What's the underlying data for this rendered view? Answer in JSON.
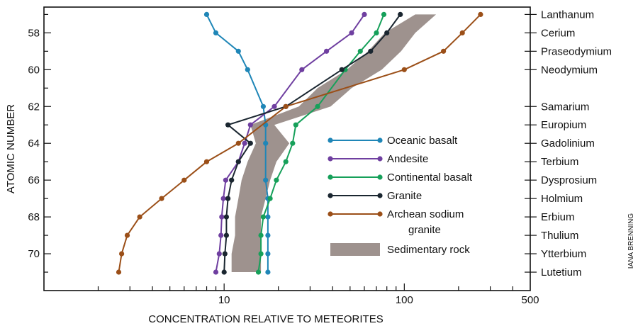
{
  "chart_data": {
    "type": "line",
    "xlabel": "CONCENTRATION RELATIVE TO METEORITES",
    "ylabel": "ATOMIC NUMBER",
    "x_scale": "log",
    "xlim": [
      1,
      500
    ],
    "ylim": [
      56.6,
      72
    ],
    "y_inverted": true,
    "x_ticks": [
      10,
      100,
      500
    ],
    "y_ticks": [
      58,
      60,
      62,
      64,
      66,
      68,
      70
    ],
    "elements": [
      {
        "z": 57,
        "name": "Lanthanum"
      },
      {
        "z": 58,
        "name": "Cerium"
      },
      {
        "z": 59,
        "name": "Praseodymium"
      },
      {
        "z": 60,
        "name": "Neodymium"
      },
      {
        "z": 62,
        "name": "Samarium"
      },
      {
        "z": 63,
        "name": "Europium"
      },
      {
        "z": 64,
        "name": "Gadolinium"
      },
      {
        "z": 65,
        "name": "Terbium"
      },
      {
        "z": 66,
        "name": "Dysprosium"
      },
      {
        "z": 67,
        "name": "Holmium"
      },
      {
        "z": 68,
        "name": "Erbium"
      },
      {
        "z": 69,
        "name": "Thulium"
      },
      {
        "z": 70,
        "name": "Ytterbium"
      },
      {
        "z": 71,
        "name": "Lutetium"
      }
    ],
    "series": [
      {
        "name": "Oceanic basalt",
        "color": "#1f86b7",
        "points": [
          [
            8,
            57
          ],
          [
            9,
            58
          ],
          [
            12,
            59
          ],
          [
            13.5,
            60
          ],
          [
            16.5,
            62
          ],
          [
            17,
            63
          ],
          [
            17,
            64
          ],
          [
            17,
            66
          ],
          [
            17.5,
            67
          ],
          [
            17.5,
            68
          ],
          [
            17.5,
            69
          ],
          [
            17.5,
            70
          ],
          [
            17.5,
            71
          ]
        ]
      },
      {
        "name": "Andesite",
        "color": "#6f3fa0",
        "points": [
          [
            60,
            57
          ],
          [
            51,
            58
          ],
          [
            37,
            59
          ],
          [
            27,
            60
          ],
          [
            19,
            62
          ],
          [
            14,
            63
          ],
          [
            13,
            64
          ],
          [
            12,
            65
          ],
          [
            10.2,
            66
          ],
          [
            9.9,
            67
          ],
          [
            9.7,
            68
          ],
          [
            9.6,
            69
          ],
          [
            9.4,
            70
          ],
          [
            9,
            71
          ]
        ]
      },
      {
        "name": "Continental basalt",
        "color": "#16a05a",
        "points": [
          [
            77,
            57
          ],
          [
            70,
            58
          ],
          [
            57,
            59
          ],
          [
            47,
            60
          ],
          [
            33,
            62
          ],
          [
            25,
            63
          ],
          [
            24,
            64
          ],
          [
            22,
            65
          ],
          [
            19.5,
            66
          ],
          [
            18,
            67
          ],
          [
            16.5,
            68
          ],
          [
            16,
            69
          ],
          [
            16,
            70
          ],
          [
            15.5,
            71
          ]
        ]
      },
      {
        "name": "Granite",
        "color": "#1a2630",
        "points": [
          [
            95,
            57
          ],
          [
            80,
            58
          ],
          [
            65,
            59
          ],
          [
            45,
            60
          ],
          [
            22,
            62
          ],
          [
            10.5,
            63
          ],
          [
            14,
            64
          ],
          [
            12,
            65
          ],
          [
            11,
            66
          ],
          [
            10.5,
            67
          ],
          [
            10.3,
            68
          ],
          [
            10.3,
            69
          ],
          [
            10.1,
            70
          ],
          [
            10,
            71
          ]
        ]
      },
      {
        "name": "Archean sodium granite",
        "color": "#9b4f18",
        "points": [
          [
            265,
            57
          ],
          [
            210,
            58
          ],
          [
            165,
            59
          ],
          [
            100,
            60
          ],
          [
            22,
            62
          ],
          [
            12,
            64
          ],
          [
            8,
            65
          ],
          [
            6,
            66
          ],
          [
            4.5,
            67
          ],
          [
            3.4,
            68
          ],
          [
            2.9,
            69
          ],
          [
            2.7,
            70
          ],
          [
            2.6,
            71
          ]
        ]
      }
    ],
    "band": {
      "name": "Sedimentary rock",
      "color": "#9e928e",
      "left": [
        [
          115,
          57
        ],
        [
          78,
          58
        ],
        [
          63,
          59
        ],
        [
          48,
          60
        ],
        [
          33,
          61
        ],
        [
          26,
          62
        ],
        [
          14,
          63
        ],
        [
          15,
          64
        ],
        [
          13.5,
          65
        ],
        [
          12.5,
          66
        ],
        [
          12,
          67
        ],
        [
          11.5,
          68
        ],
        [
          11.5,
          69
        ],
        [
          11,
          70
        ],
        [
          11,
          71
        ]
      ],
      "right": [
        [
          150,
          57
        ],
        [
          115,
          58
        ],
        [
          96,
          59
        ],
        [
          75,
          60
        ],
        [
          51,
          61
        ],
        [
          39,
          62
        ],
        [
          19,
          63
        ],
        [
          23,
          64
        ],
        [
          19.5,
          65
        ],
        [
          18,
          66
        ],
        [
          17,
          67
        ],
        [
          16,
          68
        ],
        [
          16,
          69
        ],
        [
          16,
          70
        ],
        [
          16,
          71
        ]
      ]
    },
    "legend": {
      "placement": "center-right",
      "entries": [
        {
          "label": "Oceanic basalt",
          "kind": "line",
          "color": "#1f86b7"
        },
        {
          "label": "Andesite",
          "kind": "line",
          "color": "#6f3fa0"
        },
        {
          "label": "Continental basalt",
          "kind": "line",
          "color": "#16a05a"
        },
        {
          "label": "Granite",
          "kind": "line",
          "color": "#1a2630"
        },
        {
          "label": "Archean sodium",
          "label2": "granite",
          "kind": "line",
          "color": "#9b4f18"
        },
        {
          "label": "Sedimentary rock",
          "kind": "band",
          "color": "#9e928e"
        }
      ]
    },
    "credit": "IANA BRENNING"
  }
}
